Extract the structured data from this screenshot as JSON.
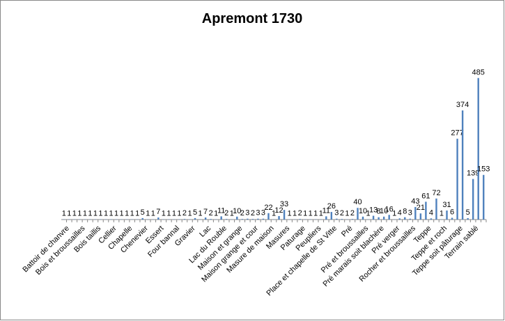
{
  "chart_data": {
    "type": "bar",
    "title": "Apremont 1730",
    "categories": [
      "Battoir de chanvre",
      null,
      null,
      "Bois et broussailles",
      null,
      null,
      "Bois taillis",
      null,
      null,
      "Cellier",
      null,
      null,
      "Chapelle",
      null,
      null,
      "Chenevier",
      null,
      null,
      "Essert",
      null,
      null,
      "Four bannal",
      null,
      null,
      "Gravier",
      null,
      null,
      "Lac",
      null,
      null,
      "Lac du Rouble",
      null,
      null,
      "Maison et grange",
      null,
      null,
      "Maison grange et cour",
      null,
      null,
      "Masure de maison",
      null,
      null,
      "Masures",
      null,
      null,
      "Paturage",
      null,
      null,
      "Peupliers",
      null,
      null,
      "Place et chapelle de St Vitte",
      null,
      null,
      "Pré",
      null,
      null,
      "Pré et broussailles",
      null,
      null,
      "Pré marais soit blachère",
      null,
      null,
      "Pré verger",
      null,
      null,
      "Rocher et broussailles",
      null,
      null,
      "Teppe",
      null,
      null,
      "Teppe et roch",
      null,
      null,
      "Teppe soit pâturage",
      null,
      null,
      "Terrain sablé",
      null,
      null
    ],
    "values": [
      1,
      1,
      1,
      1,
      1,
      1,
      1,
      1,
      1,
      1,
      1,
      1,
      1,
      1,
      1,
      5,
      1,
      1,
      7,
      1,
      1,
      1,
      1,
      2,
      1,
      5,
      1,
      7,
      2,
      1,
      11,
      2,
      1,
      10,
      2,
      3,
      2,
      3,
      3,
      22,
      1,
      12,
      33,
      1,
      1,
      2,
      1,
      1,
      1,
      1,
      11,
      26,
      3,
      2,
      1,
      2,
      40,
      10,
      1,
      13,
      8,
      10,
      16,
      1,
      4,
      8,
      3,
      43,
      21,
      61,
      4,
      72,
      1,
      31,
      6,
      277,
      374,
      5,
      139,
      485,
      153
    ],
    "color": "#4f81bd",
    "ylim": [
      0,
      600
    ]
  }
}
